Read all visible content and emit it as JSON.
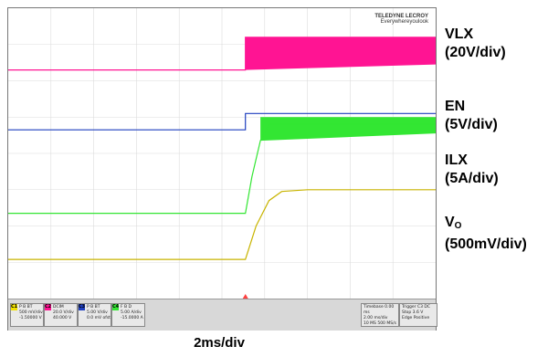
{
  "chart_data": {
    "type": "line",
    "title": "",
    "xlabel": "2ms/div",
    "xlim_div": [
      0,
      10
    ],
    "ylim_div": [
      0,
      8
    ],
    "grid": true,
    "series": [
      {
        "name": "VLX",
        "scale": "20V/div",
        "color": "#ff1493",
        "points": [
          [
            0,
            6.3
          ],
          [
            5.55,
            6.3
          ],
          [
            5.55,
            7.2
          ],
          [
            10,
            7.2
          ]
        ],
        "switching_band": [
          [
            5.55,
            6.3,
            7.2
          ],
          [
            10,
            6.45,
            7.2
          ]
        ]
      },
      {
        "name": "EN",
        "scale": "5V/div",
        "color": "#1f3fbf",
        "points": [
          [
            0,
            4.65
          ],
          [
            5.55,
            4.65
          ],
          [
            5.55,
            5.1
          ],
          [
            10,
            5.1
          ]
        ]
      },
      {
        "name": "ILX",
        "scale": "5A/div",
        "color": "#33e633",
        "points": [
          [
            0,
            2.35
          ],
          [
            5.55,
            2.35
          ],
          [
            5.7,
            3.35
          ],
          [
            5.9,
            4.35
          ],
          [
            6.1,
            4.8
          ],
          [
            10,
            4.8
          ]
        ],
        "switching_band": [
          [
            5.9,
            4.35,
            5.0
          ],
          [
            10,
            4.55,
            5.0
          ]
        ]
      },
      {
        "name": "VO",
        "scale": "500mV/div",
        "color": "#c8b400",
        "points": [
          [
            0,
            1.08
          ],
          [
            5.55,
            1.08
          ],
          [
            5.8,
            2.0
          ],
          [
            6.1,
            2.7
          ],
          [
            6.4,
            2.95
          ],
          [
            7,
            3.0
          ],
          [
            10,
            3.0
          ]
        ]
      }
    ]
  },
  "labels": {
    "vlx_name": "VLX",
    "vlx_scale": "(20V/div)",
    "en_name": "EN",
    "en_scale": "(5V/div)",
    "ilx_name": "ILX",
    "ilx_scale": "(5A/div)",
    "vo_name": "V",
    "vo_sub": "O",
    "vo_scale": "(500mV/div)"
  },
  "logo": {
    "brand": "TELEDYNE LECROY",
    "tagline": "Everywhereyoulook"
  },
  "status_bar": {
    "channels": [
      {
        "num": "C1",
        "color": "#f0e000",
        "lines": [
          "P B BT",
          "500 mV/div",
          "-1.50000 V"
        ]
      },
      {
        "num": "C2",
        "color": "#ff1493",
        "lines": [
          "DCIM",
          "20.0 V/div",
          "40.000 V"
        ]
      },
      {
        "num": "C3",
        "color": "#1f3fbf",
        "lines": [
          "P B BT",
          "5.00 V/div",
          "0.0 mV ofst"
        ]
      },
      {
        "num": "C4",
        "color": "#33e633",
        "lines": [
          "F B D",
          "5.00 A/div",
          "-15.0000 A"
        ]
      }
    ],
    "timebase": [
      "Timebase 0.00 ms",
      "2.00 ms/div",
      "10 MS 500 MS/s"
    ],
    "trigger": [
      "Trigger C3 DC",
      "Stop 3.6 V",
      "Edge Positive"
    ]
  }
}
